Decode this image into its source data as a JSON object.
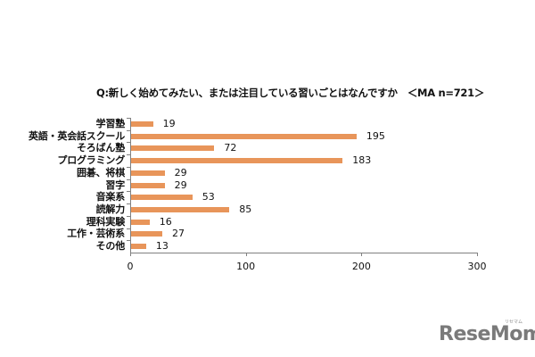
{
  "chart_data": {
    "type": "bar",
    "orientation": "horizontal",
    "title": "Q:新しく始めてみたい、または注目している習いごとはなんですか　＜MA n=721＞",
    "xlabel": "",
    "ylabel": "",
    "categories": [
      "学習塾",
      "英語・英会話スクール",
      "そろばん塾",
      "プログラミング",
      "囲碁、将棋",
      "習字",
      "音楽系",
      "読解力",
      "理科実験",
      "工作・芸術系",
      "その他"
    ],
    "values": [
      19,
      195,
      72,
      183,
      29,
      29,
      53,
      85,
      16,
      27,
      13
    ],
    "xlim": [
      0,
      300
    ],
    "xticks": [
      "0",
      "100",
      "200",
      "300"
    ],
    "grid": false,
    "legend": null,
    "bar_color": "#E8955A",
    "data_labels": true
  },
  "watermark": {
    "text": "ReseMom",
    "ruby": "リセマム"
  }
}
